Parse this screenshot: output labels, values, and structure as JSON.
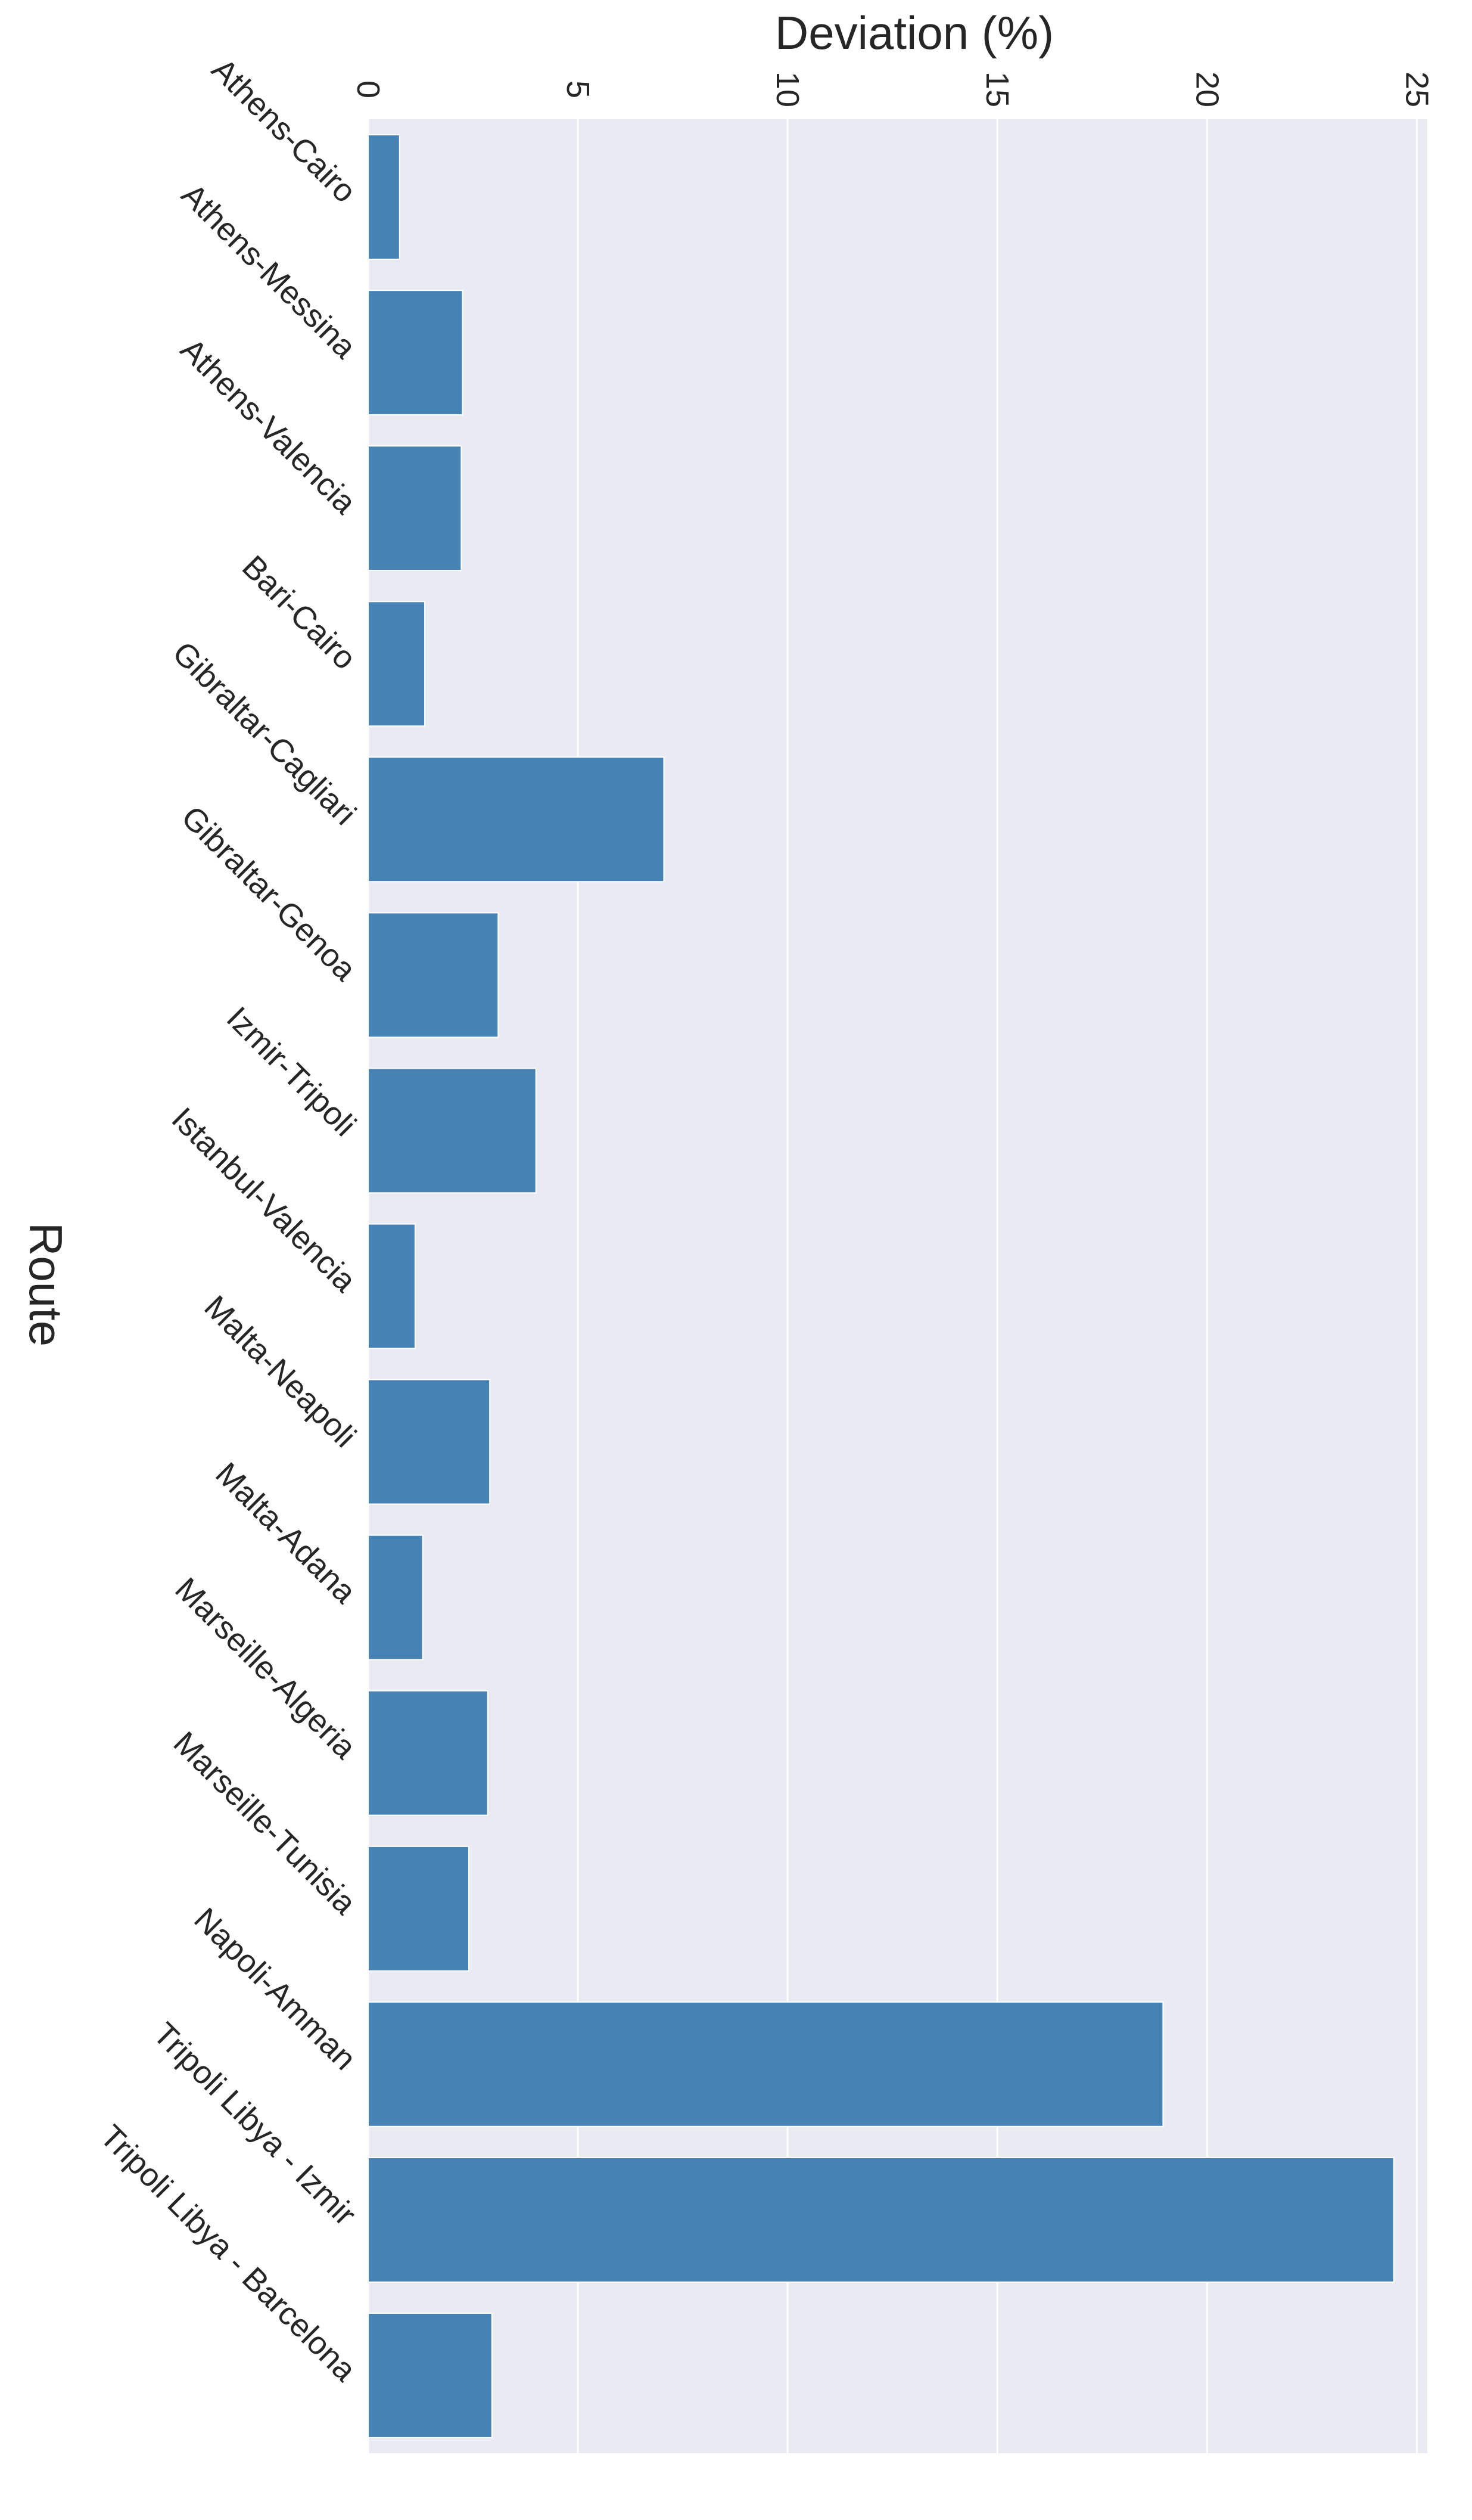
{
  "chart_data": {
    "type": "bar",
    "orientation": "horizontal",
    "title": "",
    "xlabel": "Deviation (%)",
    "ylabel": "Route",
    "xlim": [
      0,
      25
    ],
    "xticks": [
      "0",
      "5",
      "10",
      "15",
      "20",
      "25"
    ],
    "grid": true,
    "categories": [
      "Athens-Cairo",
      "Athens-Messina",
      "Athens-Valencia",
      "Bari-Cairo",
      "Gibraltar-Cagliari",
      "Gibraltar-Genoa",
      "Izmir-Tripoli",
      "Istanbul-Valencia",
      "Malta-Neapoli",
      "Malta-Adana",
      "Marseille-Algeria",
      "Marseille-Tunisia",
      "Napoli-Amman",
      "Tripoli Libya - Izmir",
      "Tripoli Libya - Barcelona"
    ],
    "values": [
      0.75,
      2.25,
      2.22,
      1.35,
      7.05,
      3.1,
      4.0,
      1.12,
      2.9,
      1.3,
      2.85,
      2.4,
      18.95,
      24.45,
      2.95
    ],
    "bar_color": "#4682b4",
    "background_color": "#eaeaf2",
    "grid_color": "#ffffff"
  }
}
